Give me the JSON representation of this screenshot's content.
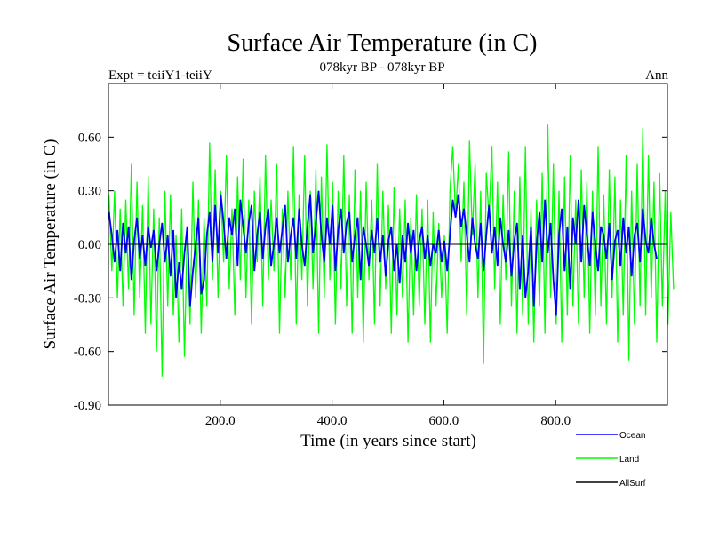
{
  "chart_data": {
    "type": "line",
    "title": "Surface Air Temperature (in C)",
    "subtitle": "078kyr BP - 078kyr BP",
    "left_note": "Expt = teiiY1-teiiY",
    "right_note": "Ann",
    "xlabel": "Time (in years since start)",
    "ylabel": "Surface Air Temperature (in C)",
    "xlim": [
      0,
      1000
    ],
    "ylim": [
      -0.9,
      0.9
    ],
    "x_ticks": [
      200,
      400,
      600,
      800
    ],
    "x_tick_labels": [
      "200.0",
      "400.0",
      "600.0",
      "800.0"
    ],
    "y_ticks": [
      -0.9,
      -0.6,
      -0.3,
      0.0,
      0.3,
      0.6
    ],
    "y_tick_labels": [
      "-0.90",
      "-0.60",
      "-0.30",
      "0.00",
      "0.30",
      "0.60"
    ],
    "grid": false,
    "legend_position": "bottom-right",
    "series": [
      {
        "name": "Ocean",
        "color": "#0000ff",
        "x_start": 1,
        "x_step": 5,
        "values": [
          0.18,
          0.05,
          -0.1,
          0.08,
          -0.15,
          0.12,
          -0.05,
          0.1,
          -0.2,
          0.02,
          0.15,
          -0.08,
          0.05,
          -0.12,
          0.1,
          -0.02,
          0.08,
          -0.15,
          0.0,
          0.12,
          -0.1,
          0.05,
          -0.18,
          0.08,
          -0.3,
          -0.1,
          -0.25,
          -0.05,
          0.1,
          -0.35,
          -0.15,
          0.0,
          0.15,
          -0.28,
          -0.2,
          0.05,
          0.18,
          -0.1,
          0.22,
          -0.05,
          0.28,
          0.12,
          -0.08,
          0.15,
          0.05,
          0.2,
          -0.12,
          0.25,
          0.1,
          -0.05,
          0.12,
          0.22,
          -0.15,
          0.05,
          0.18,
          -0.08,
          0.1,
          0.2,
          -0.12,
          0.0,
          0.15,
          -0.05,
          0.08,
          0.22,
          -0.1,
          0.05,
          0.15,
          -0.08,
          0.2,
          0.0,
          -0.12,
          0.1,
          0.28,
          -0.05,
          0.12,
          0.3,
          0.05,
          -0.1,
          0.15,
          0.0,
          0.22,
          -0.15,
          0.08,
          0.2,
          -0.05,
          0.12,
          0.18,
          -0.1,
          0.05,
          0.15,
          -0.2,
          0.1,
          0.0,
          -0.12,
          0.08,
          -0.05,
          0.15,
          -0.1,
          0.05,
          -0.18,
          0.02,
          0.1,
          -0.15,
          0.0,
          -0.22,
          0.05,
          -0.1,
          0.12,
          -0.05,
          0.08,
          -0.15,
          0.02,
          0.1,
          -0.08,
          0.05,
          -0.12,
          0.0,
          -0.05,
          0.08,
          -0.1,
          0.02,
          -0.15,
          0.05,
          0.25,
          0.15,
          0.28,
          0.1,
          0.2,
          0.05,
          -0.1,
          0.15,
          0.0,
          -0.08,
          0.12,
          -0.15,
          0.05,
          0.22,
          -0.05,
          0.1,
          -0.12,
          0.15,
          0.0,
          -0.1,
          0.08,
          -0.18,
          0.02,
          0.12,
          -0.25,
          0.05,
          -0.3,
          -0.15,
          0.1,
          -0.35,
          0.0,
          0.18,
          -0.1,
          0.25,
          -0.05,
          0.12,
          -0.2,
          -0.4,
          0.05,
          0.2,
          -0.15,
          0.1,
          -0.25,
          0.15,
          0.0,
          0.25,
          -0.1,
          0.22,
          0.05,
          -0.12,
          0.18,
          0.0,
          -0.15,
          0.1,
          0.05,
          -0.08,
          0.12,
          -0.2,
          0.02,
          0.08,
          -0.12,
          0.15,
          -0.05,
          0.1,
          -0.18,
          0.05,
          0.12,
          -0.1,
          0.2,
          0.02,
          -0.05,
          0.15,
          0.0,
          -0.08
        ]
      },
      {
        "name": "Land",
        "color": "#00ff00",
        "x_start": 1,
        "x_step": 5,
        "values": [
          0.28,
          -0.15,
          0.3,
          -0.3,
          0.2,
          -0.35,
          0.25,
          -0.25,
          0.45,
          -0.4,
          0.35,
          -0.3,
          0.22,
          -0.5,
          0.38,
          -0.45,
          0.2,
          -0.6,
          0.15,
          -0.74,
          0.3,
          -0.35,
          0.28,
          -0.4,
          0.05,
          -0.55,
          0.2,
          -0.63,
          0.1,
          -0.45,
          0.35,
          -0.3,
          0.25,
          -0.5,
          0.15,
          -0.35,
          0.57,
          -0.2,
          0.42,
          -0.3,
          0.3,
          -0.1,
          0.5,
          -0.25,
          0.2,
          -0.4,
          0.38,
          -0.2,
          0.48,
          -0.3,
          0.25,
          -0.45,
          0.3,
          -0.1,
          0.38,
          -0.35,
          0.5,
          -0.2,
          0.25,
          -0.15,
          0.45,
          -0.5,
          0.2,
          -0.3,
          0.3,
          -0.2,
          0.55,
          -0.45,
          0.28,
          -0.2,
          0.5,
          -0.35,
          0.3,
          -0.25,
          0.42,
          -0.5,
          0.38,
          -0.3,
          0.56,
          -0.2,
          0.35,
          -0.45,
          0.3,
          -0.25,
          0.5,
          -0.35,
          0.28,
          -0.5,
          0.42,
          -0.3,
          0.3,
          -0.55,
          0.35,
          -0.2,
          0.25,
          -0.45,
          0.45,
          -0.35,
          0.3,
          -0.25,
          0.22,
          -0.5,
          0.32,
          -0.4,
          0.2,
          -0.3,
          0.25,
          -0.55,
          0.15,
          -0.4,
          0.28,
          -0.35,
          0.2,
          -0.45,
          0.25,
          -0.55,
          0.18,
          -0.35,
          0.12,
          -0.3,
          0.05,
          -0.5,
          0.3,
          0.55,
          0.15,
          0.45,
          -0.1,
          0.35,
          -0.4,
          0.58,
          0.05,
          0.45,
          -0.3,
          0.3,
          -0.67,
          0.4,
          0.15,
          0.55,
          -0.25,
          0.35,
          -0.45,
          0.28,
          -0.2,
          0.52,
          -0.35,
          0.3,
          -0.5,
          0.38,
          -0.4,
          0.55,
          -0.45,
          0.2,
          -0.55,
          0.25,
          -0.35,
          0.4,
          -0.5,
          0.67,
          -0.3,
          0.45,
          -0.45,
          0.3,
          -0.55,
          0.38,
          -0.4,
          0.5,
          -0.35,
          0.25,
          -0.45,
          0.42,
          -0.3,
          0.35,
          -0.5,
          0.3,
          -0.4,
          0.55,
          -0.35,
          0.28,
          -0.45,
          0.42,
          -0.3,
          0.38,
          -0.55,
          0.25,
          -0.4,
          0.5,
          -0.65,
          0.3,
          -0.45,
          0.45,
          -0.35,
          0.65,
          -0.4,
          0.5,
          -0.3,
          0.35,
          -0.55,
          0.4,
          -0.35,
          0.3,
          -0.45,
          0.18,
          -0.25
        ]
      },
      {
        "name": "AllSurf",
        "color": "#000000",
        "x_start": 1,
        "x_step": 5,
        "values": [
          0.0,
          0.0
        ]
      }
    ]
  }
}
